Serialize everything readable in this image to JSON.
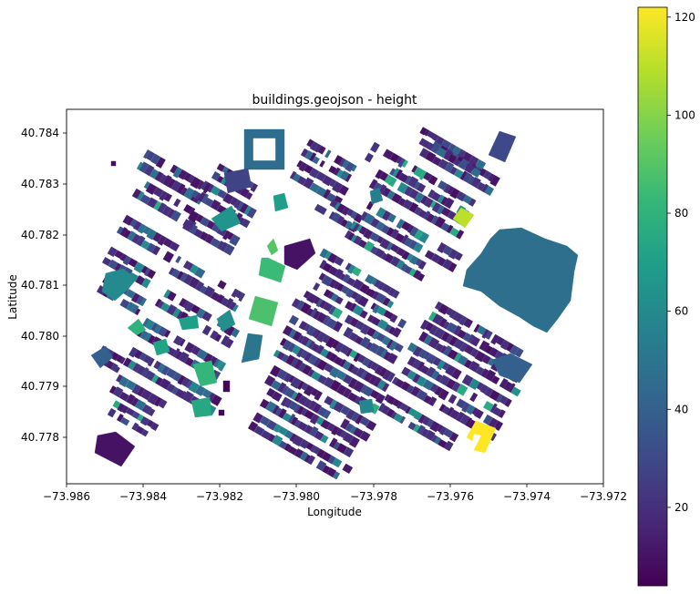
{
  "title": "buildings.geojson - height",
  "xlabel": "Longitude",
  "ylabel": "Latitude",
  "x_ticks": [
    "−73.986",
    "−73.984",
    "−73.982",
    "−73.980",
    "−73.978",
    "−73.976",
    "−73.974",
    "−73.972"
  ],
  "y_ticks": [
    "40.784",
    "40.783",
    "40.782",
    "40.781",
    "40.780",
    "40.779",
    "40.778"
  ],
  "colorbar": {
    "colormap": "viridis",
    "min": 4,
    "max": 122,
    "ticks": [
      "20",
      "40",
      "60",
      "80",
      "100",
      "120"
    ]
  },
  "colors": {
    "viridis_stops": [
      "#440154",
      "#482878",
      "#3e4a89",
      "#31688e",
      "#26828e",
      "#1f9e89",
      "#35b779",
      "#6ece58",
      "#b5de2b",
      "#fde725"
    ]
  },
  "chart_data": {
    "type": "choropleth",
    "title": "buildings.geojson - height",
    "xlabel": "Longitude",
    "ylabel": "Latitude",
    "xlim": [
      -73.986,
      -73.972
    ],
    "ylim": [
      40.7771,
      40.7844
    ],
    "value_range": [
      4,
      122
    ],
    "features_approx": [
      {
        "name": "large block east",
        "lon": -73.9743,
        "lat": 40.7811,
        "height": 47
      },
      {
        "name": "yellow-green building",
        "lon": -73.9757,
        "lat": 40.7818,
        "height": 110
      },
      {
        "name": "yellow building southeast",
        "lon": -73.9752,
        "lat": 40.778,
        "height": 122
      },
      {
        "name": "green triangle",
        "lon": -73.9808,
        "lat": 40.7805,
        "height": 85
      },
      {
        "name": "dark block southwest",
        "lon": -73.9847,
        "lat": 40.7777,
        "height": 10
      }
    ]
  }
}
